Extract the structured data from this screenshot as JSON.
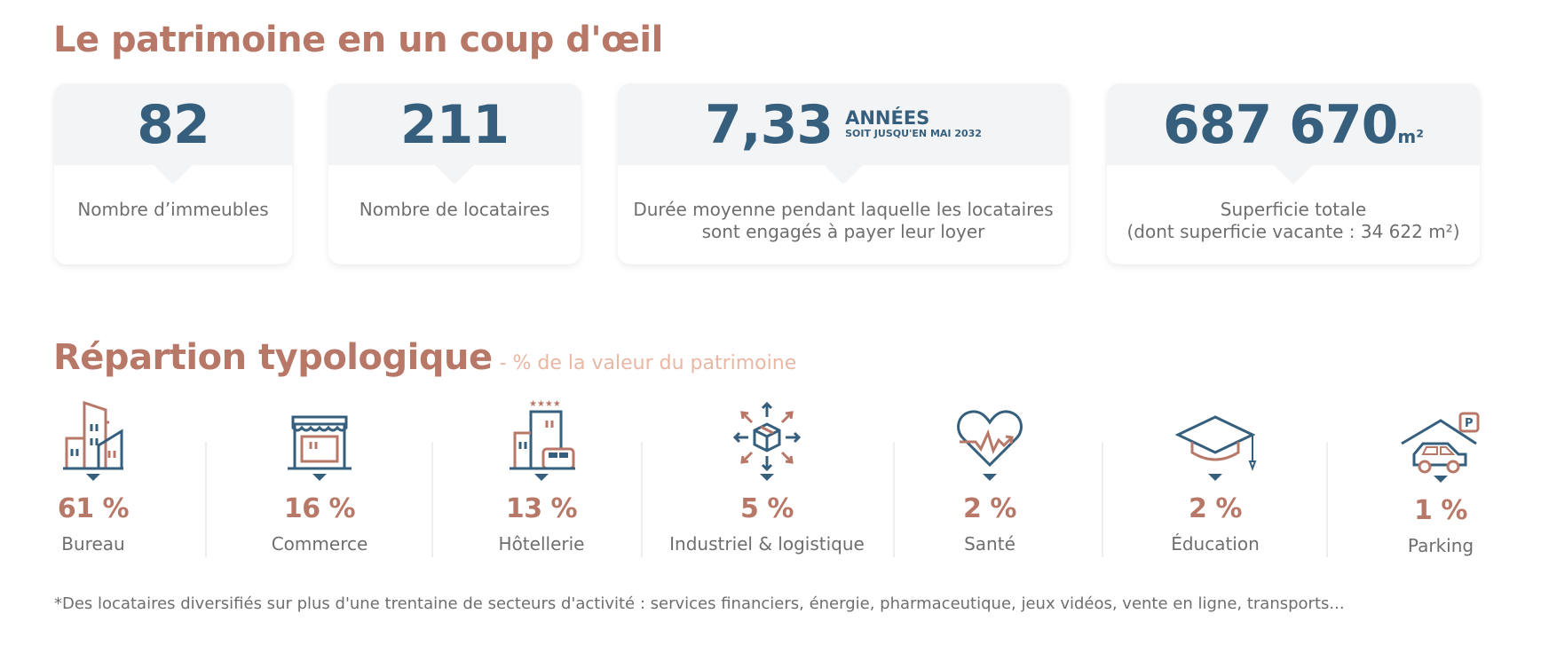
{
  "overview": {
    "title": "Le patrimoine en un coup d'œil",
    "cards": [
      {
        "value": "82",
        "label": "Nombre d’immeubles"
      },
      {
        "value": "211",
        "label": "Nombre de locataires"
      },
      {
        "value": "7,33",
        "unit": "ANNÉES",
        "unit_sub": "SOIT JUSQU'EN MAI 2032",
        "label_line1": "Durée moyenne pendant laquelle les locataires",
        "label_line2": "sont engagés à payer leur loyer"
      },
      {
        "value": "687 670",
        "unit": "m²",
        "label_line1": "Superficie totale",
        "label_line2": "(dont superficie vacante : 34 622 m²)"
      }
    ]
  },
  "typology": {
    "title": "Répartion typologique",
    "subtitle": "- % de la valeur du patrimoine",
    "categories": [
      {
        "icon": "office-building-icon",
        "pct": "61 %",
        "name": "Bureau"
      },
      {
        "icon": "storefront-icon",
        "pct": "16 %",
        "name": "Commerce"
      },
      {
        "icon": "hotel-icon",
        "pct": "13 %",
        "name": "Hôtellerie"
      },
      {
        "icon": "logistics-box-icon",
        "pct": "5 %",
        "name": "Industriel & logistique"
      },
      {
        "icon": "heart-pulse-icon",
        "pct": "2 %",
        "name": "Santé"
      },
      {
        "icon": "graduation-cap-icon",
        "pct": "2 %",
        "name": "Éducation"
      },
      {
        "icon": "parking-car-icon",
        "pct": "1 %",
        "name": "Parking"
      }
    ]
  },
  "footnote": "*Des locataires diversifiés sur plus d'une trentaine de secteurs d'activité : services financiers, énergie, pharmaceutique, jeux vidéos, vente en ligne, transports...",
  "colors": {
    "accent": "#b87868",
    "primary": "#365f7d",
    "card_top": "#f3f4f6",
    "subtitle": "#e9b7a3",
    "text": "#6e6e6e"
  }
}
